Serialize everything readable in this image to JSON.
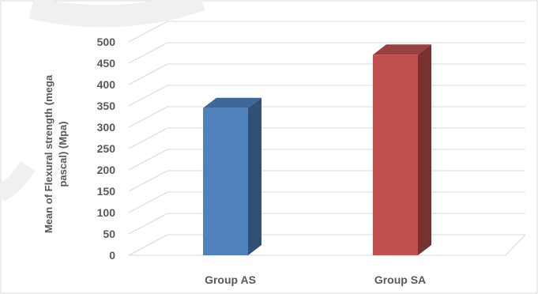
{
  "chart_data": {
    "type": "bar",
    "style": "3d-column",
    "categories": [
      "Group AS",
      "Group SA"
    ],
    "series": [
      {
        "values": [
          345,
          470
        ]
      }
    ],
    "bar_colors": [
      "#4f81bd",
      "#c0504d"
    ],
    "ylabel": "Mean of Flexural strength (mega pascal) (Mpa)",
    "ylabel_lines": [
      "Mean of Flexural strength (mega",
      "pascal) (Mpa)"
    ],
    "xlabel": "",
    "ylim": [
      0,
      500
    ],
    "ytick_step": 50,
    "grid": true,
    "legend": "none"
  }
}
